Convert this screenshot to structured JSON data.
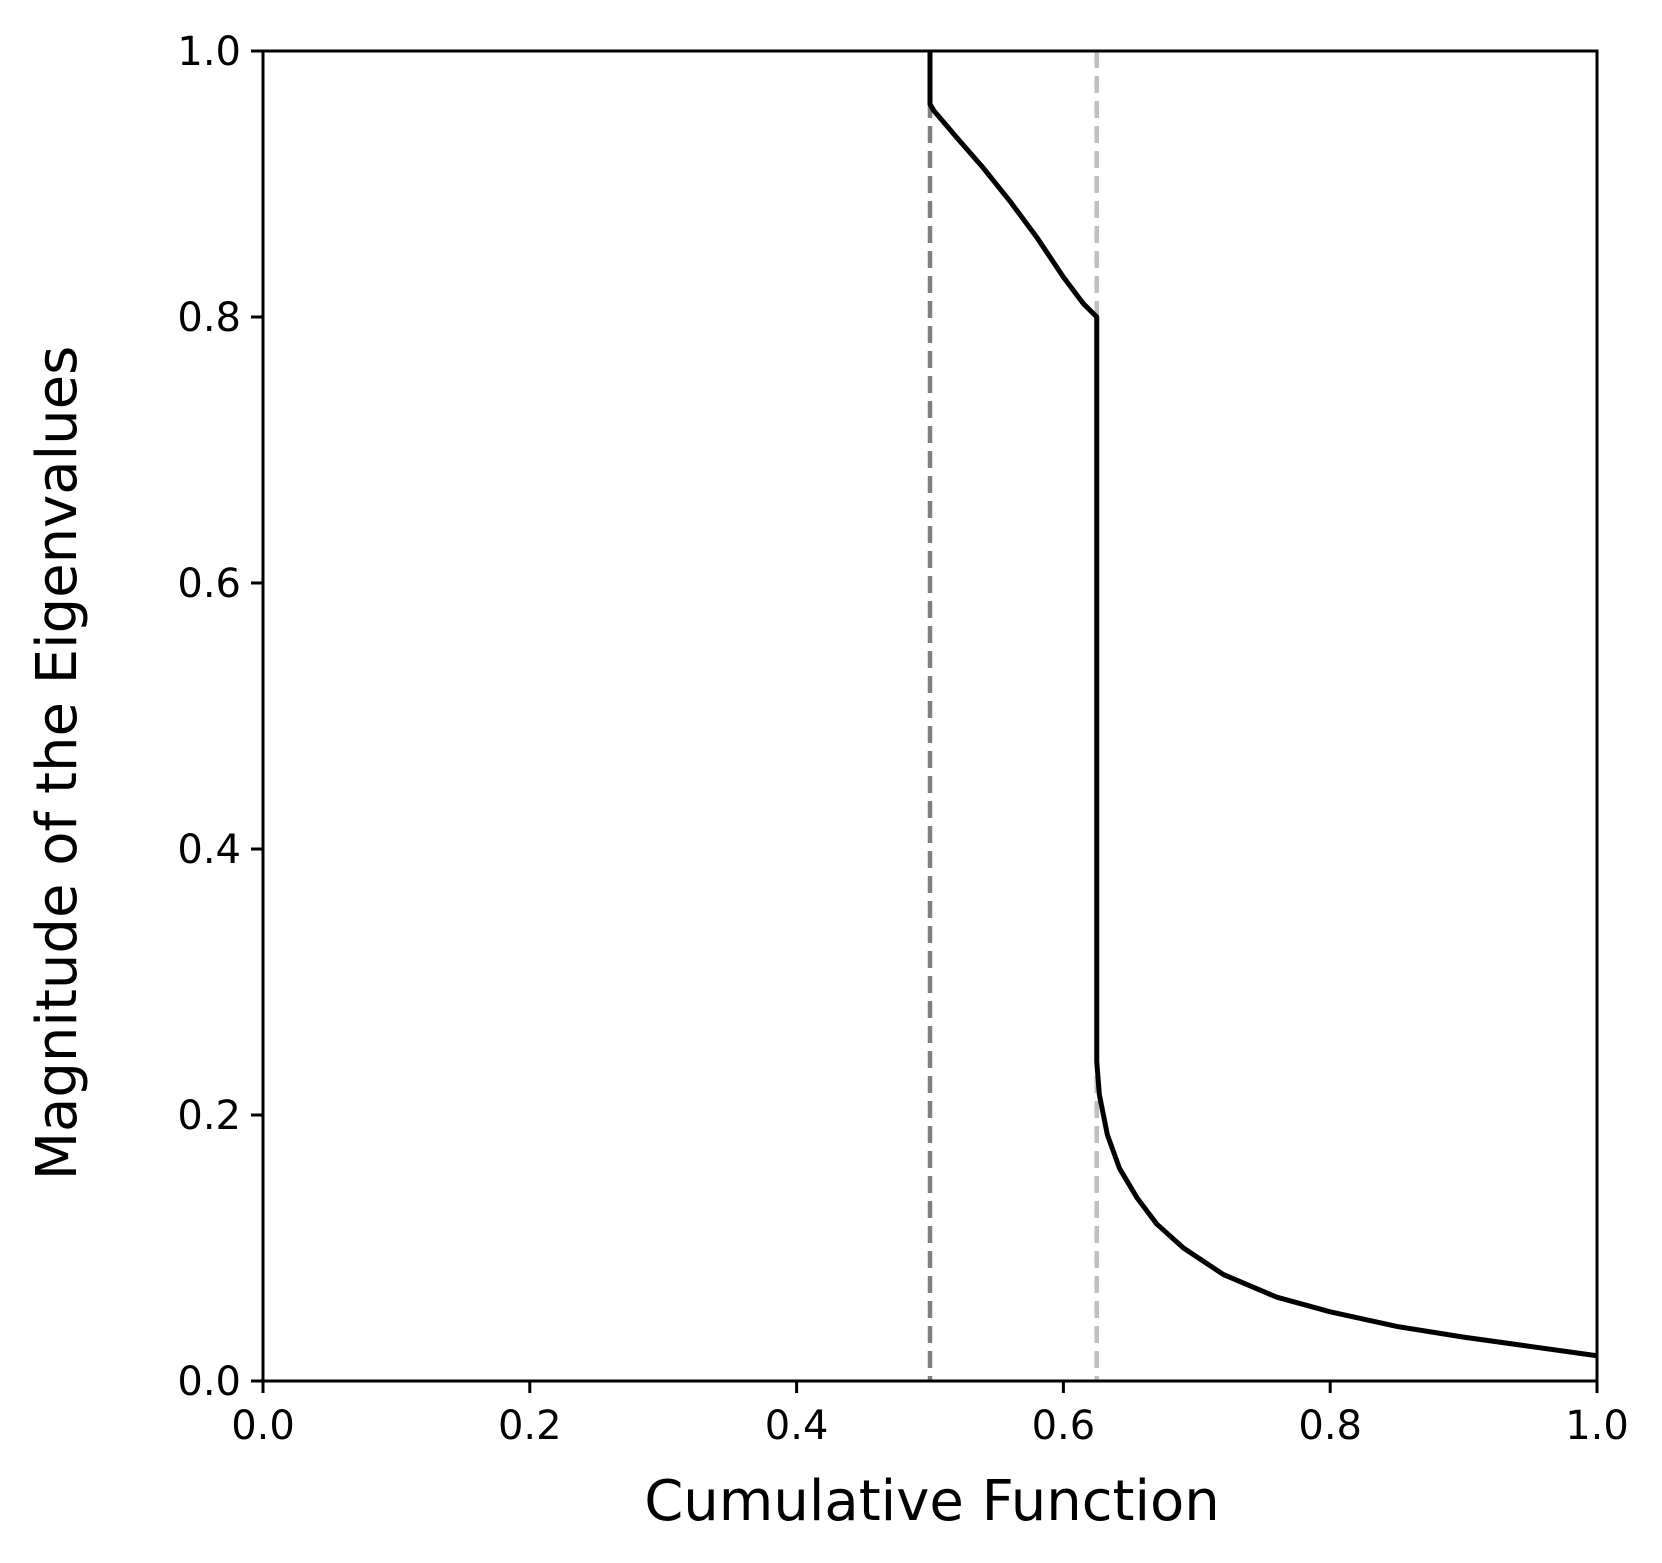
{
  "chart_data": {
    "type": "line",
    "title": "",
    "xlabel": "Cumulative Function",
    "ylabel": "Magnitude of the Eigenvalues",
    "xlim": [
      0.0,
      1.0
    ],
    "ylim": [
      0.0,
      1.0
    ],
    "xticks": [
      "0.0",
      "0.2",
      "0.4",
      "0.6",
      "0.8",
      "1.0"
    ],
    "yticks": [
      "0.0",
      "0.2",
      "0.4",
      "0.6",
      "0.8",
      "1.0"
    ],
    "grid": false,
    "legend": "none",
    "series": [
      {
        "style": "solid",
        "color": "#000000",
        "x": [
          0.5,
          0.5,
          0.503,
          0.52,
          0.54,
          0.56,
          0.58,
          0.6,
          0.615,
          0.625,
          0.625,
          0.625,
          0.627,
          0.633,
          0.642,
          0.655,
          0.67,
          0.69,
          0.72,
          0.76,
          0.8,
          0.85,
          0.9,
          0.95,
          1.0
        ],
        "y": [
          1.0,
          0.96,
          0.955,
          0.935,
          0.912,
          0.887,
          0.86,
          0.83,
          0.81,
          0.8,
          0.5,
          0.24,
          0.215,
          0.185,
          0.16,
          0.138,
          0.118,
          0.1,
          0.08,
          0.063,
          0.052,
          0.041,
          0.033,
          0.026,
          0.019
        ]
      }
    ],
    "vlines": [
      {
        "x": 0.5,
        "style": "dashed",
        "color": "#808080"
      },
      {
        "x": 0.625,
        "style": "dashed",
        "color": "#bfbfbf"
      }
    ]
  }
}
